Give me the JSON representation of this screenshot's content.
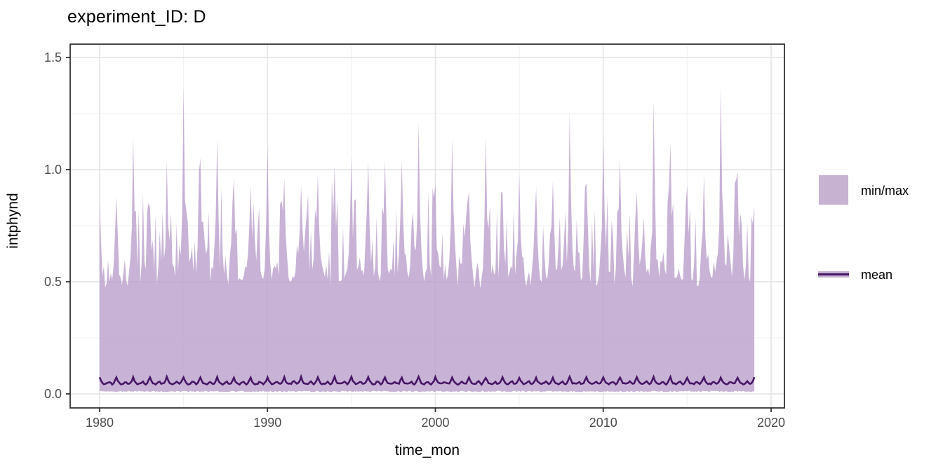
{
  "title": "experiment_ID: D",
  "x_axis": {
    "label": "time_mon",
    "tick_labels": [
      "1980",
      "1990",
      "2000",
      "2010",
      "2020"
    ]
  },
  "y_axis": {
    "label": "intphynd",
    "tick_labels": [
      "0.0",
      "0.5",
      "1.0",
      "1.5"
    ]
  },
  "legend": {
    "items": [
      {
        "label": "min/max",
        "type": "fill"
      },
      {
        "label": "mean",
        "type": "line"
      }
    ]
  },
  "colors": {
    "ribbon": "#b89ecb",
    "ribbon_opacity": 0.78,
    "ribbon_solid": "#c7b2d2",
    "mean_line": "#471666",
    "panel_border": "#333333",
    "grid_major": "#e6e6e6",
    "grid_minor": "#f3f3f3",
    "tick_mark": "#333333",
    "tick_text": "#4d4d4d",
    "title_text": "#000000"
  },
  "chart_data": {
    "type": "area",
    "title": "experiment_ID: D",
    "xlabel": "time_mon",
    "ylabel": "intphynd",
    "frequency": "monthly",
    "x_start": 1980.0,
    "x_end": 2019.0,
    "x_ticks": [
      1980,
      1990,
      2000,
      2010,
      2020
    ],
    "x_minor_ticks": [
      1985,
      1995,
      2005,
      2015
    ],
    "y_ticks": [
      0.0,
      0.5,
      1.0,
      1.5
    ],
    "y_minor_ticks": [
      0.25,
      0.75,
      1.25
    ],
    "xlim": [
      1978.24,
      2020.79
    ],
    "ylim": [
      -0.0625,
      1.5625
    ],
    "grid": true,
    "legend_position": "right",
    "series": [
      {
        "name": "min/max",
        "role": "ribbon",
        "description": "Monthly min/max envelope; lower edge nearly flat at ~0.01, upper edge base fluctuates 0.44-0.62 with narrow winter spikes reaching the annual peak values below",
        "ribbon_min": 0.01,
        "annual_peak_start_year": 1980,
        "annual_peaks": [
          0.87,
          0.88,
          1.15,
          0.83,
          1.04,
          1.37,
          1.05,
          1.14,
          0.96,
          0.93,
          1.11,
          0.96,
          0.93,
          0.98,
          1.02,
          1.06,
          1.04,
          1.04,
          1.04,
          1.21,
          0.94,
          1.14,
          0.9,
          1.15,
          0.9,
          0.98,
          0.92,
          0.95,
          1.26,
          0.94,
          1.14,
          1.05,
          0.9,
          1.31,
          1.12,
          0.93,
          0.98,
          1.38,
          0.99,
          0.84
        ]
      },
      {
        "name": "mean",
        "role": "line",
        "description": "Monthly mean with small annual cycle, oscillating between ~0.04 and ~0.08",
        "base": 0.042,
        "seasonal_amplitude": 0.032
      }
    ],
    "generation": {
      "seed": 11,
      "n_months": 469,
      "max_month_weights": [
        1,
        0.45,
        0.18,
        0.1,
        0.06,
        0.08,
        0.14,
        0.1,
        0.05,
        0.08,
        0.25,
        0.55
      ],
      "mean_month_weights": [
        1,
        0.5,
        0.22,
        0.1,
        0.06,
        0.12,
        0.3,
        0.38,
        0.18,
        0.08,
        0.2,
        0.55
      ],
      "base_min": 0.44,
      "base_spread": 0.12,
      "noise": 0.05,
      "bump_prob": 0.28,
      "bump_base": 0.1,
      "bump_spread": 0.22,
      "min_base": 0.008,
      "min_noise": 0.006,
      "mean_base": 0.042,
      "mean_amplitude": 0.032,
      "mean_noise": 0.006
    }
  }
}
